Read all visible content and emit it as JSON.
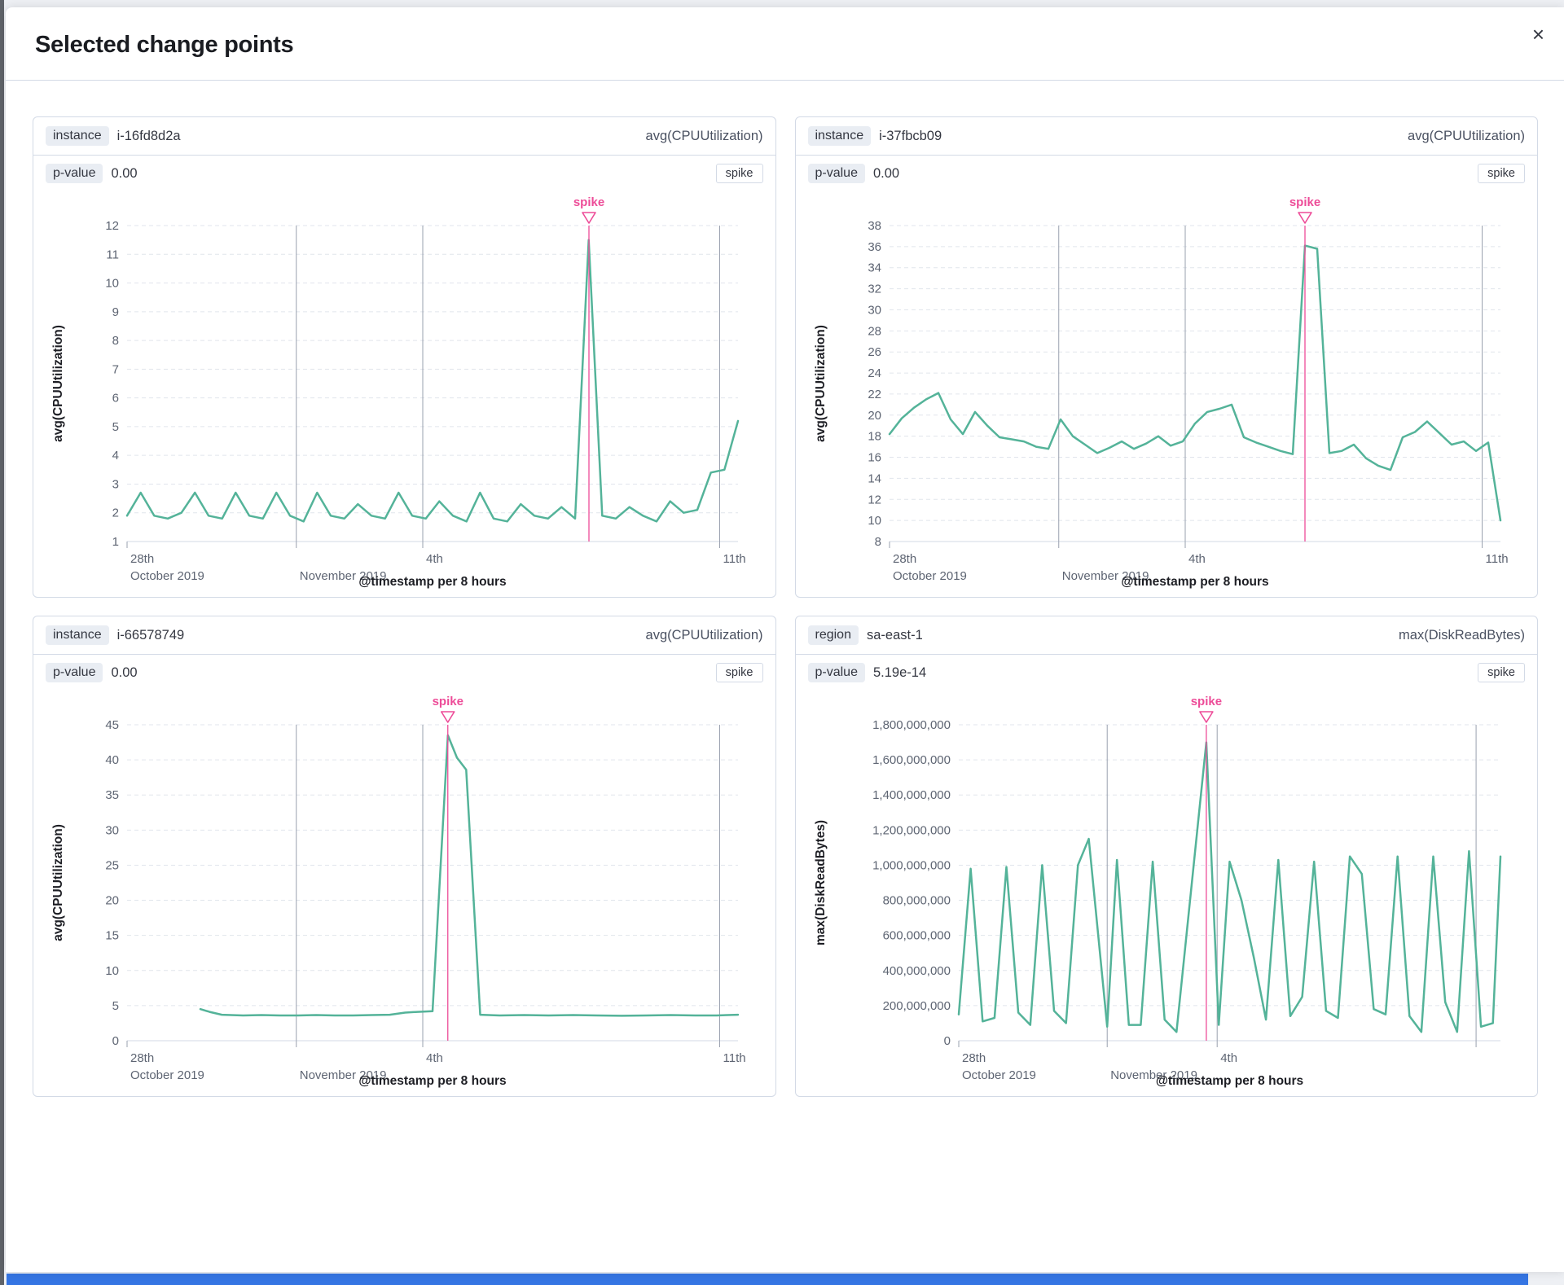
{
  "modal": {
    "title": "Selected change points",
    "close_icon": "×"
  },
  "panels": [
    {
      "key_label": "instance",
      "key_value": "i-16fd8d2a",
      "metric": "avg(CPUUtilization)",
      "p_label": "p-value",
      "p_value": "0.00",
      "change_type": "spike"
    },
    {
      "key_label": "instance",
      "key_value": "i-37fbcb09",
      "metric": "avg(CPUUtilization)",
      "p_label": "p-value",
      "p_value": "0.00",
      "change_type": "spike"
    },
    {
      "key_label": "instance",
      "key_value": "i-66578749",
      "metric": "avg(CPUUtilization)",
      "p_label": "p-value",
      "p_value": "0.00",
      "change_type": "spike"
    },
    {
      "key_label": "region",
      "key_value": "sa-east-1",
      "metric": "max(DiskReadBytes)",
      "p_label": "p-value",
      "p_value": "5.19e-14",
      "change_type": "spike"
    }
  ],
  "colors": {
    "line": "#54b399",
    "accent": "#ed4c98",
    "grid_dashed": "#e1e5ec",
    "grid_vertical": "#9aa1af",
    "baseline": "#d3dae6"
  },
  "chart_data": [
    {
      "type": "line",
      "xlabel": "@timestamp per 8 hours",
      "ylabel": "avg(CPUUtilization)",
      "ylim": [
        1,
        12
      ],
      "ytick_step": 1,
      "ytick_format": "plain",
      "xticks": [
        {
          "x": 0.0,
          "day": "28th",
          "month": "October 2019"
        },
        {
          "x": 0.277,
          "month": "November 2019"
        },
        {
          "x": 0.484,
          "day": "4th"
        },
        {
          "x": 0.97,
          "day": "11th"
        }
      ],
      "annotation": {
        "label": "spike",
        "x": 0.756
      },
      "series": [
        {
          "name": "avg(CPUUtilization)",
          "color": "#54b399",
          "values": [
            1.9,
            2.7,
            1.9,
            1.8,
            2.0,
            2.7,
            1.9,
            1.8,
            2.7,
            1.9,
            1.8,
            2.7,
            1.9,
            1.7,
            2.7,
            1.9,
            1.8,
            2.3,
            1.9,
            1.8,
            2.7,
            1.9,
            1.8,
            2.4,
            1.9,
            1.7,
            2.7,
            1.8,
            1.7,
            2.3,
            1.9,
            1.8,
            2.2,
            1.8,
            11.5,
            1.9,
            1.8,
            2.2,
            1.9,
            1.7,
            2.4,
            2.0,
            2.1,
            3.4,
            3.5,
            5.2
          ]
        }
      ]
    },
    {
      "type": "line",
      "xlabel": "@timestamp per 8 hours",
      "ylabel": "avg(CPUUtilization)",
      "ylim": [
        8,
        38
      ],
      "ytick_step": 2,
      "ytick_format": "plain",
      "xticks": [
        {
          "x": 0.0,
          "day": "28th",
          "month": "October 2019"
        },
        {
          "x": 0.277,
          "month": "November 2019"
        },
        {
          "x": 0.484,
          "day": "4th"
        },
        {
          "x": 0.97,
          "day": "11th"
        }
      ],
      "annotation": {
        "label": "spike",
        "x": 0.68
      },
      "series": [
        {
          "name": "avg(CPUUtilization)",
          "color": "#54b399",
          "values": [
            18.2,
            19.7,
            20.7,
            21.5,
            22.1,
            19.6,
            18.2,
            20.3,
            19.0,
            17.9,
            17.7,
            17.5,
            17.0,
            16.8,
            19.6,
            18.0,
            17.2,
            16.4,
            16.9,
            17.5,
            16.8,
            17.3,
            18.0,
            17.1,
            17.5,
            19.2,
            20.3,
            20.6,
            21.0,
            17.9,
            17.4,
            17.0,
            16.6,
            16.3,
            36.1,
            35.8,
            16.4,
            16.6,
            17.2,
            15.9,
            15.2,
            14.8,
            17.9,
            18.4,
            19.4,
            18.3,
            17.2,
            17.5,
            16.6,
            17.4,
            10.0
          ]
        }
      ]
    },
    {
      "type": "line",
      "xlabel": "@timestamp per 8 hours",
      "ylabel": "avg(CPUUtilization)",
      "ylim": [
        0,
        45
      ],
      "ytick_step": 5,
      "ytick_format": "plain",
      "xticks": [
        {
          "x": 0.0,
          "day": "28th",
          "month": "October 2019"
        },
        {
          "x": 0.277,
          "month": "November 2019"
        },
        {
          "x": 0.484,
          "day": "4th"
        },
        {
          "x": 0.97,
          "day": "11th"
        }
      ],
      "annotation": {
        "label": "spike",
        "x": 0.525
      },
      "series": [
        {
          "name": "avg(CPUUtilization)",
          "color": "#54b399",
          "points": [
            [
              0.12,
              4.5
            ],
            [
              0.135,
              4.1
            ],
            [
              0.155,
              3.7
            ],
            [
              0.19,
              3.6
            ],
            [
              0.22,
              3.65
            ],
            [
              0.25,
              3.6
            ],
            [
              0.28,
              3.6
            ],
            [
              0.31,
              3.65
            ],
            [
              0.34,
              3.6
            ],
            [
              0.37,
              3.6
            ],
            [
              0.4,
              3.65
            ],
            [
              0.43,
              3.7
            ],
            [
              0.455,
              4.0
            ],
            [
              0.475,
              4.1
            ],
            [
              0.5,
              4.2
            ],
            [
              0.525,
              43.5
            ],
            [
              0.54,
              40.3
            ],
            [
              0.555,
              38.6
            ],
            [
              0.578,
              3.7
            ],
            [
              0.61,
              3.6
            ],
            [
              0.65,
              3.65
            ],
            [
              0.69,
              3.6
            ],
            [
              0.73,
              3.65
            ],
            [
              0.77,
              3.6
            ],
            [
              0.81,
              3.55
            ],
            [
              0.85,
              3.6
            ],
            [
              0.89,
              3.65
            ],
            [
              0.93,
              3.6
            ],
            [
              0.965,
              3.6
            ],
            [
              1.0,
              3.7
            ]
          ]
        }
      ]
    },
    {
      "type": "line",
      "xlabel": "@timestamp per 8 hours",
      "ylabel": "max(DiskReadBytes)",
      "ylim": [
        0,
        1800000000
      ],
      "ytick_step": 200000000,
      "ytick_format": "comma",
      "xticks": [
        {
          "x": 0.0,
          "day": "28th",
          "month": "October 2019"
        },
        {
          "x": 0.274,
          "month": "November 2019"
        },
        {
          "x": 0.477,
          "day": "4th"
        },
        {
          "x": 0.955
        }
      ],
      "annotation": {
        "label": "spike",
        "x": 0.457
      },
      "series": [
        {
          "name": "max(DiskReadBytes)",
          "color": "#54b399",
          "points": [
            [
              0.0,
              150000000
            ],
            [
              0.022,
              980000000
            ],
            [
              0.044,
              110000000
            ],
            [
              0.066,
              130000000
            ],
            [
              0.088,
              990000000
            ],
            [
              0.11,
              160000000
            ],
            [
              0.132,
              90000000
            ],
            [
              0.154,
              1000000000
            ],
            [
              0.176,
              170000000
            ],
            [
              0.198,
              100000000
            ],
            [
              0.22,
              1000000000
            ],
            [
              0.24,
              1150000000
            ],
            [
              0.274,
              80000000
            ],
            [
              0.292,
              1030000000
            ],
            [
              0.314,
              90000000
            ],
            [
              0.336,
              90000000
            ],
            [
              0.358,
              1020000000
            ],
            [
              0.38,
              120000000
            ],
            [
              0.402,
              50000000
            ],
            [
              0.457,
              1700000000
            ],
            [
              0.48,
              90000000
            ],
            [
              0.5,
              1020000000
            ],
            [
              0.522,
              800000000
            ],
            [
              0.545,
              470000000
            ],
            [
              0.567,
              120000000
            ],
            [
              0.59,
              1030000000
            ],
            [
              0.612,
              140000000
            ],
            [
              0.634,
              250000000
            ],
            [
              0.656,
              1020000000
            ],
            [
              0.678,
              170000000
            ],
            [
              0.7,
              130000000
            ],
            [
              0.722,
              1050000000
            ],
            [
              0.744,
              950000000
            ],
            [
              0.766,
              180000000
            ],
            [
              0.788,
              150000000
            ],
            [
              0.81,
              1050000000
            ],
            [
              0.832,
              140000000
            ],
            [
              0.854,
              50000000
            ],
            [
              0.876,
              1050000000
            ],
            [
              0.898,
              220000000
            ],
            [
              0.92,
              50000000
            ],
            [
              0.942,
              1080000000
            ],
            [
              0.964,
              80000000
            ],
            [
              0.986,
              100000000
            ],
            [
              1.0,
              1050000000
            ]
          ]
        }
      ]
    }
  ]
}
